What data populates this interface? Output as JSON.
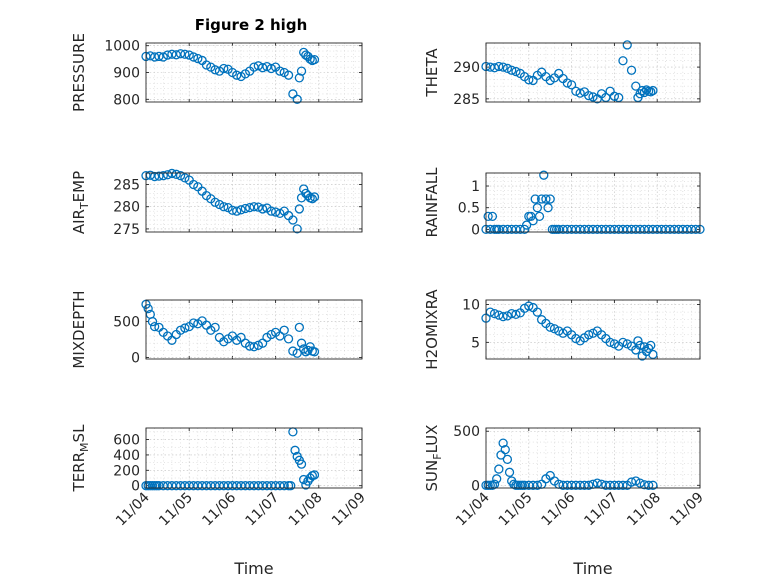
{
  "figure": {
    "title": "Figure 2 high",
    "colors": {
      "marker": "#0072BD",
      "axis": "#262626"
    }
  },
  "chart_data": [
    {
      "type": "scatter",
      "title": "Figure 2 high",
      "ylabel": "PRESSURE",
      "xlabel": "",
      "xlim": [
        0,
        5
      ],
      "ylim": [
        790,
        1010
      ],
      "yticks": [
        800,
        900,
        1000
      ],
      "ytick_labels": [
        "800",
        "900",
        "1000"
      ],
      "xticks": [
        0,
        1,
        2,
        3,
        4,
        5
      ],
      "xtick_labels": [],
      "minor_grid": true,
      "minor_yticks": [
        820,
        840,
        860,
        880,
        920,
        940,
        960,
        980,
        1000
      ],
      "x": [
        0,
        0.1,
        0.2,
        0.3,
        0.4,
        0.5,
        0.6,
        0.7,
        0.8,
        0.9,
        1.0,
        1.1,
        1.2,
        1.3,
        1.4,
        1.5,
        1.6,
        1.7,
        1.8,
        1.9,
        2.0,
        2.1,
        2.2,
        2.3,
        2.4,
        2.5,
        2.6,
        2.7,
        2.8,
        2.9,
        3.0,
        3.1,
        3.2,
        3.3,
        3.4,
        3.5,
        3.55,
        3.6,
        3.65,
        3.7,
        3.75,
        3.8,
        3.85,
        3.9
      ],
      "y": [
        960,
        962,
        958,
        960,
        958,
        965,
        968,
        966,
        970,
        968,
        965,
        958,
        952,
        945,
        928,
        920,
        910,
        905,
        915,
        912,
        900,
        890,
        885,
        895,
        905,
        920,
        925,
        918,
        922,
        915,
        920,
        905,
        900,
        890,
        820,
        800,
        880,
        905,
        975,
        965,
        960,
        950,
        945,
        948
      ]
    },
    {
      "type": "scatter",
      "title": "",
      "ylabel": "THETA",
      "xlabel": "",
      "xlim": [
        0,
        5
      ],
      "ylim": [
        284.5,
        293.8
      ],
      "yticks": [
        285,
        290
      ],
      "ytick_labels": [
        "285",
        "290"
      ],
      "xticks": [
        0,
        1,
        2,
        3,
        4,
        5
      ],
      "xtick_labels": [],
      "minor_grid": true,
      "minor_yticks": [
        286,
        287,
        288,
        289,
        291,
        292,
        293
      ],
      "x": [
        0,
        0.1,
        0.2,
        0.3,
        0.4,
        0.5,
        0.6,
        0.7,
        0.8,
        0.9,
        1.0,
        1.1,
        1.2,
        1.3,
        1.4,
        1.5,
        1.6,
        1.7,
        1.8,
        1.9,
        2.0,
        2.1,
        2.2,
        2.3,
        2.4,
        2.5,
        2.6,
        2.7,
        2.8,
        2.9,
        3.0,
        3.1,
        3.2,
        3.3,
        3.4,
        3.5,
        3.55,
        3.6,
        3.65,
        3.7,
        3.75,
        3.8,
        3.85,
        3.9
      ],
      "y": [
        290.1,
        290.0,
        289.9,
        290.1,
        290.0,
        289.8,
        289.5,
        289.3,
        289.0,
        288.5,
        288.0,
        287.9,
        288.7,
        289.2,
        288.5,
        287.9,
        288.3,
        289.0,
        288.2,
        287.5,
        287.2,
        286.2,
        285.9,
        286.1,
        285.5,
        285.3,
        285.0,
        285.8,
        285.2,
        286.2,
        285.4,
        285.2,
        291.0,
        293.5,
        289.5,
        287.0,
        285.2,
        285.8,
        286.3,
        286.0,
        286.4,
        286.2,
        286.1,
        286.3
      ]
    },
    {
      "type": "scatter",
      "title": "",
      "ylabel": "AIR_TEMP",
      "ylabel_main": "AIR",
      "ylabel_sub": "T",
      "ylabel_rest": "EMP",
      "xlabel": "",
      "xlim": [
        0,
        5
      ],
      "ylim": [
        274.3,
        287.6
      ],
      "yticks": [
        275,
        280,
        285
      ],
      "ytick_labels": [
        "275",
        "280",
        "285"
      ],
      "xticks": [
        0,
        1,
        2,
        3,
        4,
        5
      ],
      "xtick_labels": [],
      "minor_grid": true,
      "minor_yticks": [
        276,
        277,
        278,
        279,
        281,
        282,
        283,
        284,
        286,
        287
      ],
      "x": [
        0,
        0.1,
        0.2,
        0.3,
        0.4,
        0.5,
        0.6,
        0.7,
        0.8,
        0.9,
        1.0,
        1.1,
        1.2,
        1.3,
        1.4,
        1.5,
        1.6,
        1.7,
        1.8,
        1.9,
        2.0,
        2.1,
        2.2,
        2.3,
        2.4,
        2.5,
        2.6,
        2.7,
        2.8,
        2.9,
        3.0,
        3.1,
        3.2,
        3.3,
        3.4,
        3.5,
        3.55,
        3.6,
        3.65,
        3.7,
        3.75,
        3.8,
        3.85,
        3.9
      ],
      "y": [
        287.0,
        287.1,
        286.8,
        286.9,
        287.0,
        287.2,
        287.5,
        287.3,
        287.0,
        286.5,
        286.0,
        285.0,
        284.5,
        283.5,
        282.5,
        281.8,
        281.0,
        280.5,
        280.0,
        279.8,
        279.2,
        279.0,
        279.3,
        279.6,
        279.8,
        280.0,
        279.9,
        279.5,
        279.7,
        279.0,
        278.8,
        278.5,
        279.0,
        278.0,
        277.0,
        275.0,
        279.5,
        282.0,
        284.0,
        283.0,
        282.5,
        282.0,
        281.8,
        282.2
      ]
    },
    {
      "type": "scatter",
      "title": "",
      "ylabel": "RAINFALL",
      "xlabel": "",
      "xlim": [
        0,
        5
      ],
      "ylim": [
        -0.06,
        1.3
      ],
      "yticks": [
        0,
        0.5,
        1
      ],
      "ytick_labels": [
        "0",
        "0.5",
        "1"
      ],
      "xticks": [
        0,
        1,
        2,
        3,
        4,
        5
      ],
      "xtick_labels": [],
      "minor_grid": true,
      "minor_yticks": [
        0.1,
        0.2,
        0.3,
        0.4,
        0.6,
        0.7,
        0.8,
        0.9,
        1.1,
        1.2
      ],
      "x": [
        0,
        0.05,
        0.1,
        0.15,
        0.2,
        0.25,
        0.3,
        0.4,
        0.5,
        0.6,
        0.7,
        0.8,
        0.9,
        0.95,
        1.0,
        1.05,
        1.1,
        1.15,
        1.2,
        1.25,
        1.3,
        1.35,
        1.4,
        1.45,
        1.5,
        1.55,
        1.6,
        1.65,
        1.7,
        1.8,
        1.9,
        2.0,
        2.1,
        2.2,
        2.3,
        2.4,
        2.5,
        2.6,
        2.7,
        2.8,
        2.9,
        3.0,
        3.1,
        3.2,
        3.3,
        3.4,
        3.5,
        3.6,
        3.7,
        3.8,
        3.9,
        4.0,
        4.1,
        4.2,
        4.3,
        4.4,
        4.5,
        4.6,
        4.7,
        4.8,
        4.9,
        5.0
      ],
      "y": [
        0,
        0.3,
        0,
        0.3,
        0,
        0,
        0,
        0,
        0,
        0,
        0,
        0,
        0,
        0.1,
        0.3,
        0.3,
        0.2,
        0.7,
        0.5,
        0.3,
        0.7,
        1.25,
        0.7,
        0.5,
        0.7,
        0,
        0,
        0,
        0,
        0,
        0,
        0,
        0,
        0,
        0,
        0,
        0,
        0,
        0,
        0,
        0,
        0,
        0,
        0,
        0,
        0,
        0,
        0,
        0,
        0,
        0,
        0,
        0,
        0,
        0,
        0,
        0,
        0,
        0,
        0,
        0,
        0
      ]
    },
    {
      "type": "scatter",
      "title": "",
      "ylabel": "MIXDEPTH",
      "xlabel": "",
      "xlim": [
        0,
        5
      ],
      "ylim": [
        -20,
        800
      ],
      "yticks": [
        0,
        500
      ],
      "ytick_labels": [
        "0",
        "500"
      ],
      "xticks": [
        0,
        1,
        2,
        3,
        4,
        5
      ],
      "xtick_labels": [],
      "minor_grid": true,
      "minor_yticks": [
        100,
        200,
        300,
        400,
        600,
        700
      ],
      "x": [
        0,
        0.05,
        0.1,
        0.15,
        0.2,
        0.3,
        0.4,
        0.5,
        0.6,
        0.7,
        0.8,
        0.9,
        1.0,
        1.1,
        1.2,
        1.3,
        1.4,
        1.5,
        1.6,
        1.7,
        1.8,
        1.9,
        2.0,
        2.1,
        2.2,
        2.3,
        2.4,
        2.5,
        2.6,
        2.7,
        2.8,
        2.9,
        3.0,
        3.1,
        3.2,
        3.3,
        3.4,
        3.5,
        3.55,
        3.6,
        3.65,
        3.7,
        3.75,
        3.8,
        3.85,
        3.9
      ],
      "y": [
        740,
        680,
        600,
        500,
        430,
        420,
        350,
        300,
        240,
        320,
        380,
        410,
        430,
        480,
        470,
        510,
        450,
        380,
        420,
        280,
        220,
        260,
        300,
        240,
        280,
        200,
        160,
        150,
        170,
        200,
        280,
        320,
        350,
        300,
        380,
        260,
        90,
        60,
        420,
        200,
        120,
        80,
        100,
        150,
        90,
        80
      ]
    },
    {
      "type": "scatter",
      "title": "",
      "ylabel": "H2OMIXRA",
      "xlabel": "",
      "xlim": [
        0,
        5
      ],
      "ylim": [
        2.8,
        10.6
      ],
      "yticks": [
        5,
        10
      ],
      "ytick_labels": [
        "5",
        "10"
      ],
      "xticks": [
        0,
        1,
        2,
        3,
        4,
        5
      ],
      "xtick_labels": [],
      "minor_grid": true,
      "minor_yticks": [
        3,
        4,
        6,
        7,
        8,
        9
      ],
      "x": [
        0,
        0.1,
        0.2,
        0.3,
        0.4,
        0.5,
        0.6,
        0.7,
        0.8,
        0.9,
        1.0,
        1.1,
        1.2,
        1.3,
        1.4,
        1.5,
        1.6,
        1.7,
        1.8,
        1.9,
        2.0,
        2.1,
        2.2,
        2.3,
        2.4,
        2.5,
        2.6,
        2.7,
        2.8,
        2.9,
        3.0,
        3.1,
        3.2,
        3.3,
        3.4,
        3.5,
        3.55,
        3.6,
        3.65,
        3.7,
        3.75,
        3.8,
        3.85,
        3.9
      ],
      "y": [
        8.2,
        9.0,
        8.8,
        8.6,
        8.4,
        8.5,
        8.8,
        8.7,
        8.9,
        9.5,
        9.8,
        9.6,
        9.0,
        8.0,
        7.5,
        7.0,
        6.8,
        6.5,
        6.2,
        6.5,
        6.0,
        5.5,
        5.2,
        5.6,
        6.0,
        6.2,
        6.5,
        6.0,
        5.5,
        5.0,
        4.8,
        4.5,
        5.0,
        4.8,
        4.5,
        4.0,
        5.2,
        4.6,
        3.2,
        4.4,
        3.8,
        4.2,
        4.6,
        3.4
      ]
    },
    {
      "type": "scatter",
      "title": "",
      "ylabel": "TERR_MSL",
      "ylabel_main": "TERR",
      "ylabel_sub": "M",
      "ylabel_rest": "SL",
      "xlabel": "Time",
      "xlim": [
        0,
        5
      ],
      "ylim": [
        -30,
        750
      ],
      "yticks": [
        0,
        200,
        400,
        600
      ],
      "ytick_labels": [
        "0",
        "200",
        "400",
        "600"
      ],
      "xticks": [
        0,
        1,
        2,
        3,
        4,
        5
      ],
      "xtick_labels": [
        "11/04",
        "11/05",
        "11/06",
        "11/07",
        "11/08",
        "11/09"
      ],
      "minor_grid": true,
      "minor_yticks": [
        100,
        300,
        500,
        700
      ],
      "x": [
        0,
        0.05,
        0.1,
        0.15,
        0.2,
        0.25,
        0.3,
        0.4,
        0.5,
        0.6,
        0.7,
        0.8,
        0.9,
        1.0,
        1.1,
        1.2,
        1.3,
        1.4,
        1.5,
        1.6,
        1.7,
        1.8,
        1.9,
        2.0,
        2.1,
        2.2,
        2.3,
        2.4,
        2.5,
        2.6,
        2.7,
        2.8,
        2.9,
        3.0,
        3.1,
        3.2,
        3.3,
        3.35,
        3.4,
        3.45,
        3.5,
        3.55,
        3.6,
        3.65,
        3.7,
        3.75,
        3.8,
        3.85,
        3.9
      ],
      "y": [
        0,
        0,
        0,
        0,
        0,
        0,
        0,
        0,
        0,
        0,
        0,
        0,
        0,
        0,
        0,
        0,
        0,
        0,
        0,
        0,
        0,
        0,
        0,
        0,
        0,
        0,
        0,
        0,
        0,
        0,
        0,
        0,
        0,
        0,
        0,
        0,
        0,
        0,
        700,
        460,
        380,
        330,
        280,
        80,
        10,
        60,
        100,
        130,
        140
      ]
    },
    {
      "type": "scatter",
      "title": "",
      "ylabel": "SUN_FLUX",
      "ylabel_main": "SUN",
      "ylabel_sub": "F",
      "ylabel_rest": "LUX",
      "xlabel": "Time",
      "xlim": [
        0,
        5
      ],
      "ylim": [
        -25,
        530
      ],
      "yticks": [
        0,
        500
      ],
      "ytick_labels": [
        "0",
        "500"
      ],
      "xticks": [
        0,
        1,
        2,
        3,
        4,
        5
      ],
      "xtick_labels": [
        "11/04",
        "11/05",
        "11/06",
        "11/07",
        "11/08",
        "11/09"
      ],
      "minor_grid": true,
      "minor_yticks": [
        100,
        200,
        300,
        400
      ],
      "x": [
        0,
        0.05,
        0.1,
        0.15,
        0.2,
        0.25,
        0.3,
        0.35,
        0.4,
        0.45,
        0.5,
        0.55,
        0.6,
        0.65,
        0.7,
        0.75,
        0.8,
        0.85,
        0.9,
        1.0,
        1.1,
        1.2,
        1.3,
        1.4,
        1.5,
        1.6,
        1.7,
        1.8,
        1.9,
        2.0,
        2.1,
        2.2,
        2.3,
        2.4,
        2.5,
        2.6,
        2.7,
        2.8,
        2.9,
        3.0,
        3.1,
        3.2,
        3.3,
        3.4,
        3.5,
        3.6,
        3.7,
        3.8,
        3.9
      ],
      "y": [
        0,
        0,
        0,
        0,
        10,
        60,
        150,
        280,
        390,
        330,
        240,
        120,
        40,
        10,
        0,
        0,
        0,
        0,
        0,
        0,
        0,
        0,
        10,
        60,
        90,
        40,
        10,
        0,
        0,
        0,
        0,
        0,
        0,
        0,
        10,
        20,
        10,
        0,
        0,
        0,
        0,
        0,
        0,
        30,
        40,
        20,
        5,
        0,
        0
      ]
    }
  ]
}
